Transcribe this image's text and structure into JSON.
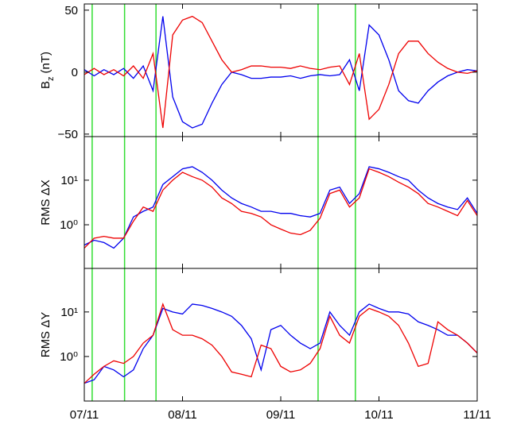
{
  "chart_data": [
    {
      "type": "line",
      "ylabel": "B",
      "ylabel_subscript": "z",
      "ylabel_suffix": "(nT)",
      "xlim": [
        0,
        4
      ],
      "ylim": [
        -52,
        55
      ],
      "yticks": [
        {
          "value": -50,
          "label": "−50"
        },
        0,
        50
      ],
      "vlines": [
        0.08,
        0.41,
        0.73,
        2.38,
        2.76
      ],
      "vline_color": "#33dd33",
      "x": [
        0,
        0.1,
        0.2,
        0.3,
        0.4,
        0.5,
        0.6,
        0.7,
        0.8,
        0.9,
        1,
        1.1,
        1.2,
        1.3,
        1.4,
        1.5,
        1.6,
        1.7,
        1.8,
        1.9,
        2,
        2.1,
        2.2,
        2.3,
        2.4,
        2.5,
        2.6,
        2.7,
        2.8,
        2.9,
        3,
        3.1,
        3.2,
        3.3,
        3.4,
        3.5,
        3.6,
        3.7,
        3.8,
        3.9,
        4
      ],
      "series": [
        {
          "color": "#0000ee",
          "values": [
            2,
            -3,
            2,
            -2,
            3,
            -5,
            5,
            -15,
            45,
            -20,
            -40,
            -45,
            -42,
            -25,
            -10,
            0,
            -2,
            -5,
            -5,
            -4,
            -4,
            -3,
            -5,
            -3,
            -2,
            -3,
            -2,
            10,
            -15,
            38,
            30,
            10,
            -15,
            -23,
            -25,
            -15,
            -8,
            -3,
            0,
            2,
            1
          ]
        },
        {
          "color": "#ee0000",
          "values": [
            -2,
            3,
            -2,
            2,
            -3,
            5,
            -5,
            15,
            -45,
            30,
            42,
            45,
            40,
            25,
            10,
            0,
            2,
            5,
            5,
            4,
            4,
            3,
            5,
            3,
            2,
            4,
            5,
            -10,
            15,
            -38,
            -30,
            -10,
            15,
            25,
            25,
            15,
            8,
            3,
            0,
            -1,
            1
          ]
        }
      ]
    },
    {
      "type": "line",
      "ylabel": "RMS ΔX",
      "log_scale": true,
      "xlim": [
        0,
        4
      ],
      "ylim": [
        0.105,
        95
      ],
      "yticks": [
        {
          "value": 1,
          "label": "10⁰"
        },
        {
          "value": 10,
          "label": "10¹"
        }
      ],
      "vlines": [
        0.08,
        0.41,
        0.73,
        2.38,
        2.76
      ],
      "vline_color": "#33dd33",
      "x": [
        0,
        0.1,
        0.2,
        0.3,
        0.4,
        0.5,
        0.6,
        0.7,
        0.8,
        0.9,
        1,
        1.1,
        1.2,
        1.3,
        1.4,
        1.5,
        1.6,
        1.7,
        1.8,
        1.9,
        2,
        2.1,
        2.2,
        2.3,
        2.4,
        2.5,
        2.6,
        2.7,
        2.8,
        2.9,
        3,
        3.1,
        3.2,
        3.3,
        3.4,
        3.5,
        3.6,
        3.7,
        3.8,
        3.9,
        4
      ],
      "series": [
        {
          "color": "#0000ee",
          "values": [
            0.35,
            0.45,
            0.4,
            0.3,
            0.5,
            1.5,
            2,
            2.5,
            8,
            12,
            18,
            20,
            15,
            10,
            6,
            4,
            3,
            2.5,
            2,
            2,
            1.8,
            1.8,
            1.6,
            1.5,
            1.8,
            6,
            7,
            3,
            5,
            20,
            18,
            15,
            12,
            10,
            6,
            4,
            3,
            2.5,
            2.2,
            4,
            1.8
          ]
        },
        {
          "color": "#ee0000",
          "values": [
            0.3,
            0.5,
            0.55,
            0.5,
            0.5,
            1.2,
            2.5,
            2,
            6,
            10,
            15,
            12,
            10,
            7,
            4,
            3,
            2,
            1.8,
            1.5,
            1,
            0.8,
            0.65,
            0.6,
            0.75,
            1.4,
            5,
            6,
            2.5,
            4,
            18,
            15,
            12,
            9,
            7,
            5,
            3,
            2.5,
            2,
            1.6,
            3.5,
            1.6
          ]
        }
      ]
    },
    {
      "type": "line",
      "ylabel": "RMS ΔY",
      "log_scale": true,
      "xlim": [
        0,
        4
      ],
      "ylim": [
        0.1,
        95
      ],
      "yticks": [
        {
          "value": 1,
          "label": "10⁰"
        },
        {
          "value": 10,
          "label": "10¹"
        }
      ],
      "xticks": [
        {
          "value": 0,
          "label": "07/11"
        },
        {
          "value": 1,
          "label": "08/11"
        },
        {
          "value": 2,
          "label": "09/11"
        },
        {
          "value": 3,
          "label": "10/11"
        },
        {
          "value": 4,
          "label": "11/11"
        }
      ],
      "vlines": [
        0.08,
        0.41,
        0.73,
        2.38,
        2.76
      ],
      "vline_color": "#33dd33",
      "x": [
        0,
        0.1,
        0.2,
        0.3,
        0.4,
        0.5,
        0.6,
        0.7,
        0.8,
        0.9,
        1,
        1.1,
        1.2,
        1.3,
        1.4,
        1.5,
        1.6,
        1.7,
        1.8,
        1.9,
        2,
        2.1,
        2.2,
        2.3,
        2.4,
        2.5,
        2.6,
        2.7,
        2.8,
        2.9,
        3,
        3.1,
        3.2,
        3.3,
        3.4,
        3.5,
        3.6,
        3.7,
        3.8,
        3.9,
        4
      ],
      "series": [
        {
          "color": "#0000ee",
          "values": [
            0.25,
            0.3,
            0.6,
            0.5,
            0.35,
            0.5,
            1.5,
            3,
            12,
            10,
            9,
            15,
            14,
            12,
            10,
            8,
            5,
            2.5,
            0.5,
            4,
            5,
            3,
            2,
            1.5,
            2,
            10,
            5,
            3,
            10,
            15,
            12,
            10,
            10,
            9,
            6,
            5,
            4,
            3,
            3,
            2,
            1.2
          ]
        },
        {
          "color": "#ee0000",
          "values": [
            0.25,
            0.4,
            0.6,
            0.8,
            0.7,
            1,
            2,
            3,
            15,
            4,
            3,
            3,
            2.5,
            1.8,
            1,
            0.45,
            0.4,
            0.35,
            1.8,
            1.5,
            0.6,
            0.45,
            0.5,
            0.7,
            1.5,
            8,
            3,
            2,
            8,
            12,
            10,
            8,
            5,
            2,
            0.6,
            0.7,
            6,
            4,
            3,
            2,
            1.2
          ]
        }
      ]
    }
  ]
}
